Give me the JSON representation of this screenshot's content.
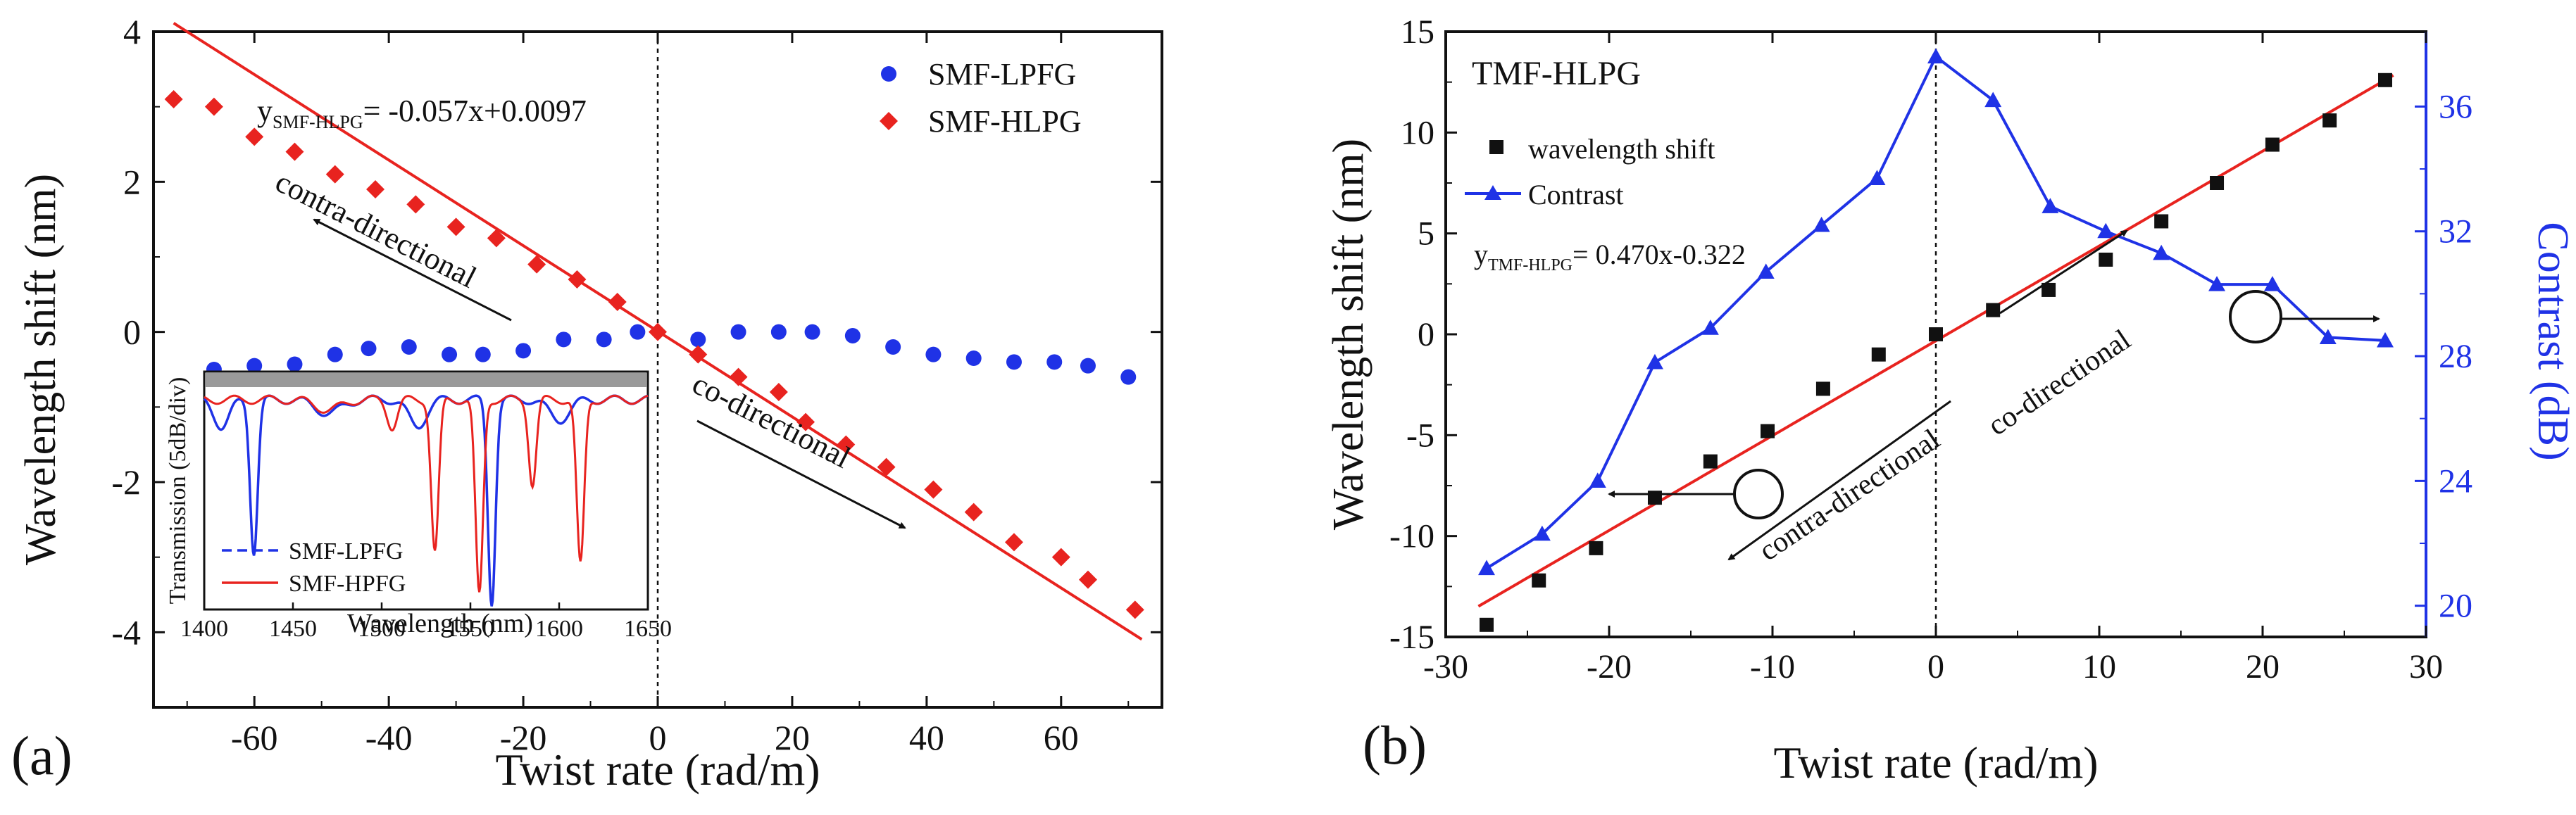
{
  "chart_data": [
    {
      "type": "scatter",
      "panel_label": "(a)",
      "xlabel": "Twist rate (rad/m)",
      "ylabel": "Wavelength shift (nm)",
      "xlim": [
        -75,
        75
      ],
      "ylim": [
        -5,
        4
      ],
      "xticks": [
        -60,
        -40,
        -20,
        0,
        20,
        40,
        60
      ],
      "yticks": [
        -4,
        -2,
        0,
        2,
        4
      ],
      "legend_position": "top-right",
      "fit_label": "y",
      "fit_label_sub": "SMF-HLPG",
      "fit_label_rest": "= -0.057x+0.0097",
      "fit_line": {
        "slope": -0.057,
        "intercept": 0.0097,
        "color": "#e8231f",
        "x_range": [
          -72,
          72
        ]
      },
      "annotations": {
        "left": "contra-directional",
        "right": "co-directional"
      },
      "series": [
        {
          "name": "SMF-LPFG",
          "marker": "circle",
          "color": "#1f32e6",
          "points": [
            [
              -66,
              -0.5
            ],
            [
              -60,
              -0.45
            ],
            [
              -54,
              -0.43
            ],
            [
              -48,
              -0.3
            ],
            [
              -43,
              -0.22
            ],
            [
              -37,
              -0.2
            ],
            [
              -31,
              -0.3
            ],
            [
              -26,
              -0.3
            ],
            [
              -20,
              -0.25
            ],
            [
              -14,
              -0.1
            ],
            [
              -8,
              -0.1
            ],
            [
              -3,
              0
            ],
            [
              6,
              -0.1
            ],
            [
              12,
              0
            ],
            [
              18,
              0
            ],
            [
              23,
              0
            ],
            [
              29,
              -0.05
            ],
            [
              35,
              -0.2
            ],
            [
              41,
              -0.3
            ],
            [
              47,
              -0.35
            ],
            [
              53,
              -0.4
            ],
            [
              59,
              -0.4
            ],
            [
              64,
              -0.45
            ],
            [
              70,
              -0.6
            ]
          ]
        },
        {
          "name": "SMF-HLPG",
          "marker": "diamond",
          "color": "#e8231f",
          "points": [
            [
              -72,
              3.1
            ],
            [
              -66,
              3.0
            ],
            [
              -60,
              2.6
            ],
            [
              -54,
              2.4
            ],
            [
              -48,
              2.1
            ],
            [
              -42,
              1.9
            ],
            [
              -36,
              1.7
            ],
            [
              -30,
              1.4
            ],
            [
              -24,
              1.25
            ],
            [
              -18,
              0.9
            ],
            [
              -12,
              0.7
            ],
            [
              -6,
              0.4
            ],
            [
              0,
              0
            ],
            [
              6,
              -0.3
            ],
            [
              12,
              -0.6
            ],
            [
              18,
              -0.8
            ],
            [
              22,
              -1.2
            ],
            [
              28,
              -1.5
            ],
            [
              34,
              -1.8
            ],
            [
              41,
              -2.1
            ],
            [
              47,
              -2.4
            ],
            [
              53,
              -2.8
            ],
            [
              60,
              -3.0
            ],
            [
              64,
              -3.3
            ],
            [
              71,
              -3.7
            ]
          ]
        }
      ],
      "inset": {
        "type": "line",
        "xlabel": "Wavelength (nm)",
        "ylabel": "Transmission (5dB/div)",
        "xlim": [
          1400,
          1650
        ],
        "xticks": [
          1400,
          1450,
          1500,
          1550,
          1600,
          1650
        ],
        "legend": [
          {
            "name": "SMF-LPFG",
            "color": "#1f32e6",
            "style": "dashed"
          },
          {
            "name": "SMF-HPFG",
            "color": "#e8231f",
            "style": "solid"
          }
        ],
        "blue_dips": [
          [
            1410,
            0.8,
            6
          ],
          [
            1428,
            4.5,
            3
          ],
          [
            1562,
            6.0,
            3
          ],
          [
            1520,
            0.8,
            7
          ],
          [
            1600,
            0.6,
            8
          ],
          [
            1470,
            0.4,
            10
          ]
        ],
        "red_dips": [
          [
            1506,
            0.8,
            4
          ],
          [
            1530,
            4.5,
            3
          ],
          [
            1555,
            5.8,
            3
          ],
          [
            1585,
            2.5,
            3
          ],
          [
            1612,
            4.9,
            3
          ],
          [
            1470,
            0.3,
            10
          ]
        ]
      }
    },
    {
      "type": "line",
      "panel_label": "(b)",
      "title": "TMF-HLPG",
      "xlabel": "Twist rate (rad/m)",
      "ylabel": "Wavelength shift (nm)",
      "y2label": "Contrast (dB)",
      "xlim": [
        -30,
        30
      ],
      "ylim": [
        -15,
        15
      ],
      "y2lim": [
        19,
        38.4
      ],
      "xticks": [
        -30,
        -20,
        -10,
        0,
        10,
        20,
        30
      ],
      "yticks": [
        -15,
        -10,
        -5,
        0,
        5,
        10,
        15
      ],
      "y2ticks": [
        20,
        24,
        28,
        32,
        36
      ],
      "legend_position": "top-left",
      "fit_label": "y",
      "fit_label_sub": "TMF-HLPG",
      "fit_label_rest": "= 0.470x-0.322",
      "fit_line": {
        "slope": 0.47,
        "intercept": -0.322,
        "color": "#e8231f",
        "x_range": [
          -28,
          28
        ]
      },
      "annotations": {
        "left": "contra-directional",
        "right": "co-directional"
      },
      "series": [
        {
          "name": "wavelength shift",
          "marker": "square",
          "color": "#111111",
          "axis": "left",
          "points": [
            [
              -27.5,
              -14.4
            ],
            [
              -24.3,
              -12.2
            ],
            [
              -20.8,
              -10.6
            ],
            [
              -17.2,
              -8.1
            ],
            [
              -13.8,
              -6.3
            ],
            [
              -10.3,
              -4.8
            ],
            [
              -6.9,
              -2.7
            ],
            [
              -3.5,
              -1.0
            ],
            [
              0,
              0
            ],
            [
              3.5,
              1.2
            ],
            [
              6.9,
              2.2
            ],
            [
              10.4,
              3.7
            ],
            [
              13.8,
              5.6
            ],
            [
              17.2,
              7.5
            ],
            [
              20.6,
              9.4
            ],
            [
              24.1,
              10.6
            ],
            [
              27.5,
              12.6
            ]
          ]
        },
        {
          "name": "Contrast",
          "marker": "triangle",
          "color": "#1f32e6",
          "axis": "right",
          "points": [
            [
              -27.5,
              21.2
            ],
            [
              -24.1,
              22.3
            ],
            [
              -20.7,
              24.0
            ],
            [
              -17.2,
              27.8
            ],
            [
              -13.8,
              28.9
            ],
            [
              -10.4,
              30.7
            ],
            [
              -7.0,
              32.2
            ],
            [
              -3.6,
              33.7
            ],
            [
              0,
              37.6
            ],
            [
              3.5,
              36.2
            ],
            [
              7.0,
              32.8
            ],
            [
              10.4,
              32.0
            ],
            [
              13.8,
              31.3
            ],
            [
              17.2,
              30.3
            ],
            [
              20.6,
              30.3
            ],
            [
              24.0,
              28.6
            ],
            [
              27.5,
              28.5
            ]
          ]
        }
      ]
    }
  ]
}
